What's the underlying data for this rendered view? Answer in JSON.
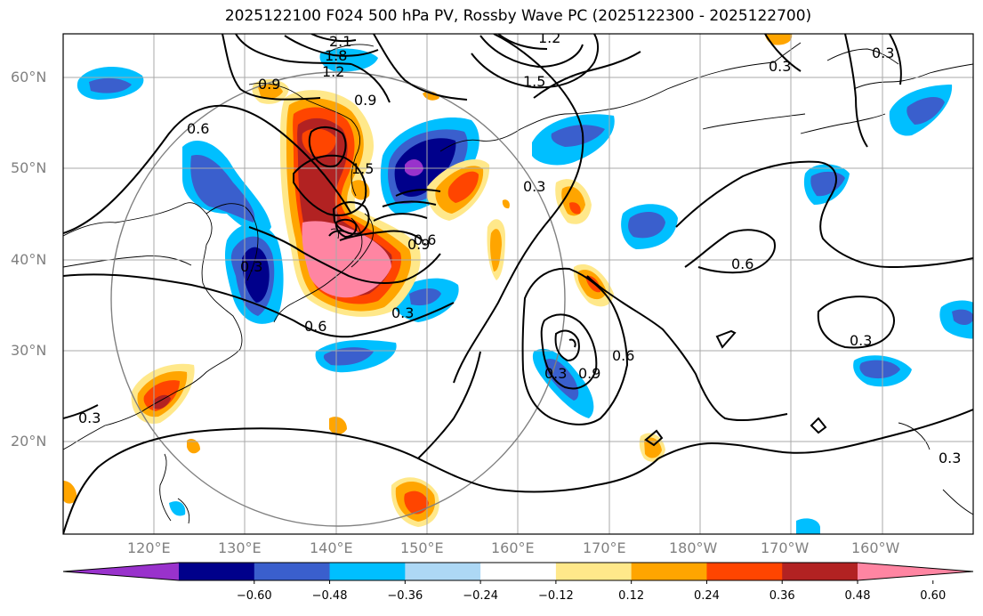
{
  "title": "2025122100 F024 500 hPa PV, Rossby Wave PC (2025122300 - 2025122700)",
  "lat_labels": [
    "60°N",
    "50°N",
    "40°N",
    "30°N",
    "20°N"
  ],
  "lon_labels": [
    "120°E",
    "130°E",
    "140°E",
    "150°E",
    "160°E",
    "170°E",
    "180°W",
    "170°W",
    "160°W"
  ],
  "colorbar": {
    "tick_labels": [
      "−0.60",
      "−0.48",
      "−0.36",
      "−0.24",
      "−0.12",
      "0.12",
      "0.24",
      "0.36",
      "0.48",
      "0.60"
    ],
    "colors": [
      "#9932CC",
      "#00008B",
      "#3A5FCD",
      "#00BFFF",
      "#ADD8F5",
      "#FFFFFF",
      "#FFE88A",
      "#FFA500",
      "#FF4500",
      "#B22222",
      "#FF85A2"
    ]
  },
  "contour_labels": [
    "2.1",
    "1.8",
    "1.2",
    "1.2",
    "1.5",
    "0.9",
    "0.9",
    "0.6",
    "1.5",
    "0.3",
    "0.3",
    "0.9",
    "0.3",
    "0.6",
    "0.6",
    "0.3",
    "0.9",
    "0.6",
    "0.3",
    "0.3",
    "0.3",
    "0.3",
    "0.6",
    "0.3"
  ],
  "map": {
    "lat_range": [
      10,
      65
    ],
    "lon_range": [
      110,
      210
    ],
    "grid": true,
    "projection": "PlateCarree"
  }
}
